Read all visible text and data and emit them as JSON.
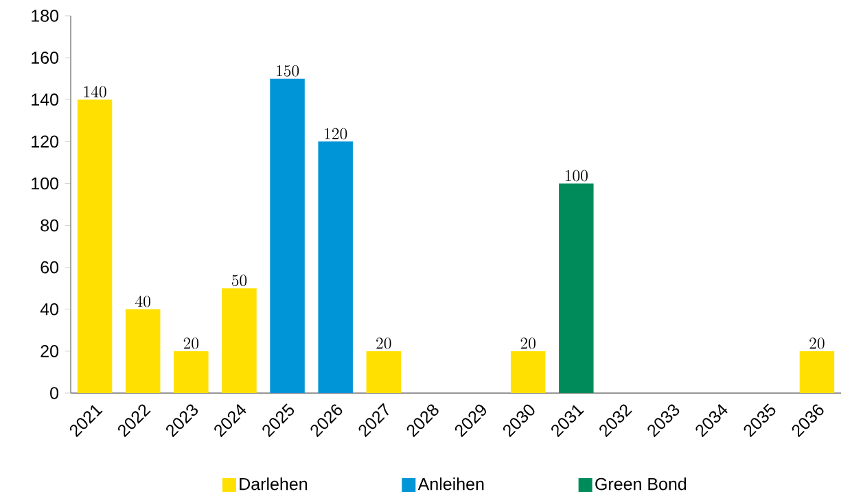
{
  "chart_data": {
    "type": "bar",
    "categories": [
      "2021",
      "2022",
      "2023",
      "2024",
      "2025",
      "2026",
      "2027",
      "2028",
      "2029",
      "2030",
      "2031",
      "2032",
      "2033",
      "2034",
      "2035",
      "2036"
    ],
    "series": [
      {
        "name": "Darlehen",
        "color": "#ffe000",
        "values": [
          140,
          40,
          20,
          50,
          null,
          null,
          20,
          null,
          null,
          20,
          null,
          null,
          null,
          null,
          null,
          20
        ]
      },
      {
        "name": "Anleihen",
        "color": "#0095d6",
        "values": [
          null,
          null,
          null,
          null,
          150,
          120,
          null,
          null,
          null,
          null,
          null,
          null,
          null,
          null,
          null,
          null
        ]
      },
      {
        "name": "Green Bond",
        "color": "#008c5a",
        "values": [
          null,
          null,
          null,
          null,
          null,
          null,
          null,
          null,
          null,
          null,
          100,
          null,
          null,
          null,
          null,
          null
        ]
      }
    ],
    "ylim": [
      0,
      180
    ],
    "yticks": [
      0,
      20,
      40,
      60,
      80,
      100,
      120,
      140,
      160,
      180
    ],
    "data_labels": true,
    "legend": "bottom",
    "grid": false
  }
}
